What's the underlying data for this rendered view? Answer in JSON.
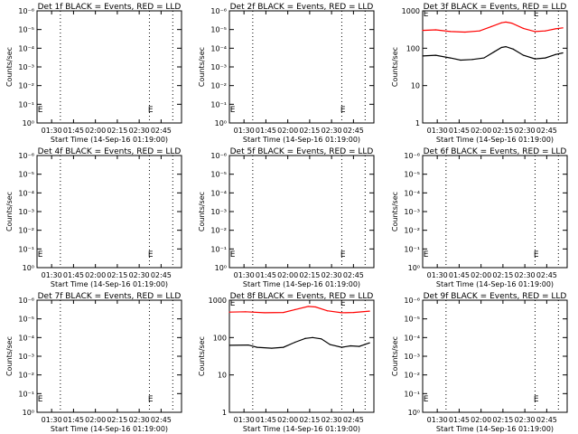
{
  "xaxis": {
    "label": "Start Time (14-Sep-16 01:19:00)",
    "range_minutes_after_start": [
      1,
      100
    ],
    "ticks": [
      {
        "v": 11,
        "label": "01:30"
      },
      {
        "v": 26,
        "label": "01:45"
      },
      {
        "v": 41,
        "label": "02:00"
      },
      {
        "v": 56,
        "label": "02:15"
      },
      {
        "v": 71,
        "label": "02:30"
      },
      {
        "v": 86,
        "label": "02:45"
      }
    ],
    "dotted_lines": [
      17,
      78,
      94
    ]
  },
  "colors": {
    "events": "#000000",
    "lld": "#ff0000"
  },
  "marker_label": "E",
  "chart_data": [
    {
      "type": "line",
      "title": "Det 1f BLACK = Events, RED = LLD",
      "ylabel": "Counts/sec",
      "yscale": "log",
      "empty": true,
      "yticks": [
        "10⁰",
        "10⁻¹",
        "10⁻²",
        "10⁻³",
        "10⁻⁴",
        "10⁻⁵",
        "10⁻⁶"
      ],
      "series": []
    },
    {
      "type": "line",
      "title": "Det 2f BLACK = Events, RED = LLD",
      "ylabel": "Counts/sec",
      "yscale": "log",
      "empty": true,
      "yticks": [
        "10⁰",
        "10⁻¹",
        "10⁻²",
        "10⁻³",
        "10⁻⁴",
        "10⁻⁵",
        "10⁻⁶"
      ],
      "series": []
    },
    {
      "type": "line",
      "title": "Det 3f BLACK = Events, RED = LLD",
      "ylabel": "Counts/sec",
      "yscale": "log",
      "empty": false,
      "ylim": [
        1,
        1000
      ],
      "yticks": [
        "1",
        "10",
        "100",
        "1000"
      ],
      "series": [
        {
          "name": "LLD",
          "color": "#ff0000",
          "points": [
            [
              1,
              300
            ],
            [
              10,
              310
            ],
            [
              20,
              280
            ],
            [
              30,
              270
            ],
            [
              40,
              290
            ],
            [
              48,
              380
            ],
            [
              55,
              480
            ],
            [
              58,
              500
            ],
            [
              62,
              470
            ],
            [
              70,
              340
            ],
            [
              78,
              280
            ],
            [
              85,
              290
            ],
            [
              92,
              330
            ],
            [
              97,
              350
            ]
          ]
        },
        {
          "name": "Events",
          "color": "#000000",
          "points": [
            [
              1,
              62
            ],
            [
              10,
              65
            ],
            [
              20,
              55
            ],
            [
              27,
              48
            ],
            [
              35,
              50
            ],
            [
              43,
              55
            ],
            [
              50,
              80
            ],
            [
              55,
              105
            ],
            [
              58,
              110
            ],
            [
              63,
              95
            ],
            [
              70,
              65
            ],
            [
              78,
              52
            ],
            [
              85,
              55
            ],
            [
              92,
              68
            ],
            [
              97,
              75
            ]
          ]
        }
      ]
    },
    {
      "type": "line",
      "title": "Det 4f BLACK = Events, RED = LLD",
      "ylabel": "Counts/sec",
      "yscale": "log",
      "empty": true,
      "yticks": [
        "10⁰",
        "10⁻¹",
        "10⁻²",
        "10⁻³",
        "10⁻⁴",
        "10⁻⁵",
        "10⁻⁶"
      ],
      "series": []
    },
    {
      "type": "line",
      "title": "Det 5f BLACK = Events, RED = LLD",
      "ylabel": "Counts/sec",
      "yscale": "log",
      "empty": true,
      "yticks": [
        "10⁰",
        "10⁻¹",
        "10⁻²",
        "10⁻³",
        "10⁻⁴",
        "10⁻⁵",
        "10⁻⁶"
      ],
      "series": []
    },
    {
      "type": "line",
      "title": "Det 6f BLACK = Events, RED = LLD",
      "ylabel": "Counts/sec",
      "yscale": "log",
      "empty": true,
      "yticks": [
        "10⁰",
        "10⁻¹",
        "10⁻²",
        "10⁻³",
        "10⁻⁴",
        "10⁻⁵",
        "10⁻⁶"
      ],
      "series": []
    },
    {
      "type": "line",
      "title": "Det 7f BLACK = Events, RED = LLD",
      "ylabel": "Counts/sec",
      "yscale": "log",
      "empty": true,
      "yticks": [
        "10⁰",
        "10⁻¹",
        "10⁻²",
        "10⁻³",
        "10⁻⁴",
        "10⁻⁵",
        "10⁻⁶"
      ],
      "series": []
    },
    {
      "type": "line",
      "title": "Det 8f BLACK = Events, RED = LLD",
      "ylabel": "Counts/sec",
      "yscale": "log",
      "empty": false,
      "ylim": [
        1,
        1000
      ],
      "yticks": [
        "1",
        "10",
        "100",
        "1000"
      ],
      "series": [
        {
          "name": "LLD",
          "color": "#ff0000",
          "points": [
            [
              1,
              480
            ],
            [
              12,
              490
            ],
            [
              25,
              460
            ],
            [
              38,
              470
            ],
            [
              46,
              560
            ],
            [
              55,
              680
            ],
            [
              60,
              660
            ],
            [
              68,
              520
            ],
            [
              78,
              460
            ],
            [
              86,
              470
            ],
            [
              97,
              510
            ]
          ]
        },
        {
          "name": "Events",
          "color": "#000000",
          "points": [
            [
              1,
              62
            ],
            [
              14,
              63
            ],
            [
              20,
              55
            ],
            [
              30,
              52
            ],
            [
              38,
              55
            ],
            [
              46,
              75
            ],
            [
              53,
              95
            ],
            [
              58,
              100
            ],
            [
              64,
              92
            ],
            [
              70,
              65
            ],
            [
              78,
              55
            ],
            [
              84,
              60
            ],
            [
              90,
              58
            ],
            [
              97,
              72
            ]
          ]
        }
      ]
    },
    {
      "type": "line",
      "title": "Det 9f BLACK = Events, RED = LLD",
      "ylabel": "Counts/sec",
      "yscale": "log",
      "empty": true,
      "yticks": [
        "10⁰",
        "10⁻¹",
        "10⁻²",
        "10⁻³",
        "10⁻⁴",
        "10⁻⁵",
        "10⁻⁶"
      ],
      "series": []
    }
  ]
}
